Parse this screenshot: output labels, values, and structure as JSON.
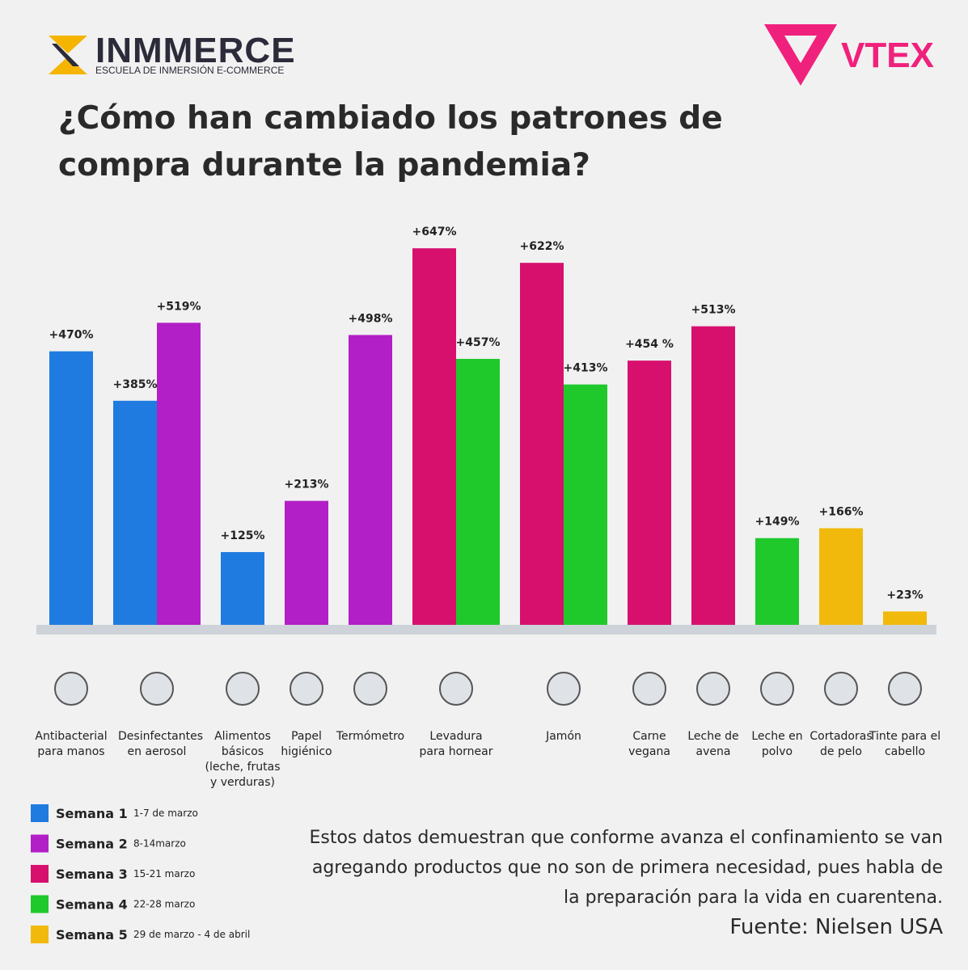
{
  "brand": {
    "name": "INMMERCE",
    "tagline": "ESCUELA DE INMERSIÓN E-COMMERCE"
  },
  "partner": "VTEX",
  "note": "Estos datos demuestran que conforme avanza el confinamiento se van agregando productos que no son de primera necesidad, pues habla de la preparación para la vida en cuarentena.",
  "source": "Fuente: Nielsen USA",
  "chart_data": {
    "type": "bar",
    "title": "¿Cómo han cambiado los patrones de compra durante la pandemia?",
    "categories": [
      "Antibacterial para manos",
      "Desinfectantes en aerosol",
      "Alimentos básicos (leche, frutas y verduras)",
      "Papel higiénico",
      "Termómetro",
      "Levadura para hornear",
      "Jamón",
      "Carne vegana",
      "Leche de avena",
      "Leche en polvo",
      "Cortadoras de pelo",
      "Tinte para el cabello"
    ],
    "series": [
      {
        "name": "Semana 1",
        "period": "1-7 de marzo",
        "color": "#1f7be0",
        "values": [
          470,
          385,
          125,
          null,
          null,
          null,
          null,
          null,
          null,
          null,
          null,
          null
        ],
        "value_labels": [
          "+470%",
          "+385%",
          "+125%",
          null,
          null,
          null,
          null,
          null,
          null,
          null,
          null,
          null
        ]
      },
      {
        "name": "Semana 2",
        "period": "8-14marzo",
        "color": "#b21fc6",
        "values": [
          null,
          519,
          null,
          213,
          498,
          null,
          null,
          null,
          null,
          null,
          null,
          null
        ],
        "value_labels": [
          null,
          "+519%",
          null,
          "+213%",
          "+498%",
          null,
          null,
          null,
          null,
          null,
          null,
          null
        ]
      },
      {
        "name": "Semana 3",
        "period": "15-21 marzo",
        "color": "#d7106e",
        "values": [
          null,
          null,
          null,
          null,
          null,
          647,
          622,
          454,
          513,
          null,
          null,
          null
        ],
        "value_labels": [
          null,
          null,
          null,
          null,
          null,
          "+647%",
          "+622%",
          "+454 %",
          "+513%",
          null,
          null,
          null
        ]
      },
      {
        "name": "Semana 4",
        "period": "22-28 marzo",
        "color": "#1fc92c",
        "values": [
          null,
          null,
          null,
          null,
          null,
          457,
          413,
          null,
          null,
          149,
          null,
          null
        ],
        "value_labels": [
          null,
          null,
          null,
          null,
          null,
          "+457%",
          "+413%",
          null,
          null,
          "+149%",
          null,
          null
        ]
      },
      {
        "name": "Semana 5",
        "period": "29 de marzo - 4 de abril",
        "color": "#f1b90c",
        "values": [
          null,
          null,
          null,
          null,
          null,
          null,
          null,
          null,
          null,
          null,
          166,
          23
        ],
        "value_labels": [
          null,
          null,
          null,
          null,
          null,
          null,
          null,
          null,
          null,
          null,
          "+166%",
          "+23%"
        ]
      }
    ]
  }
}
